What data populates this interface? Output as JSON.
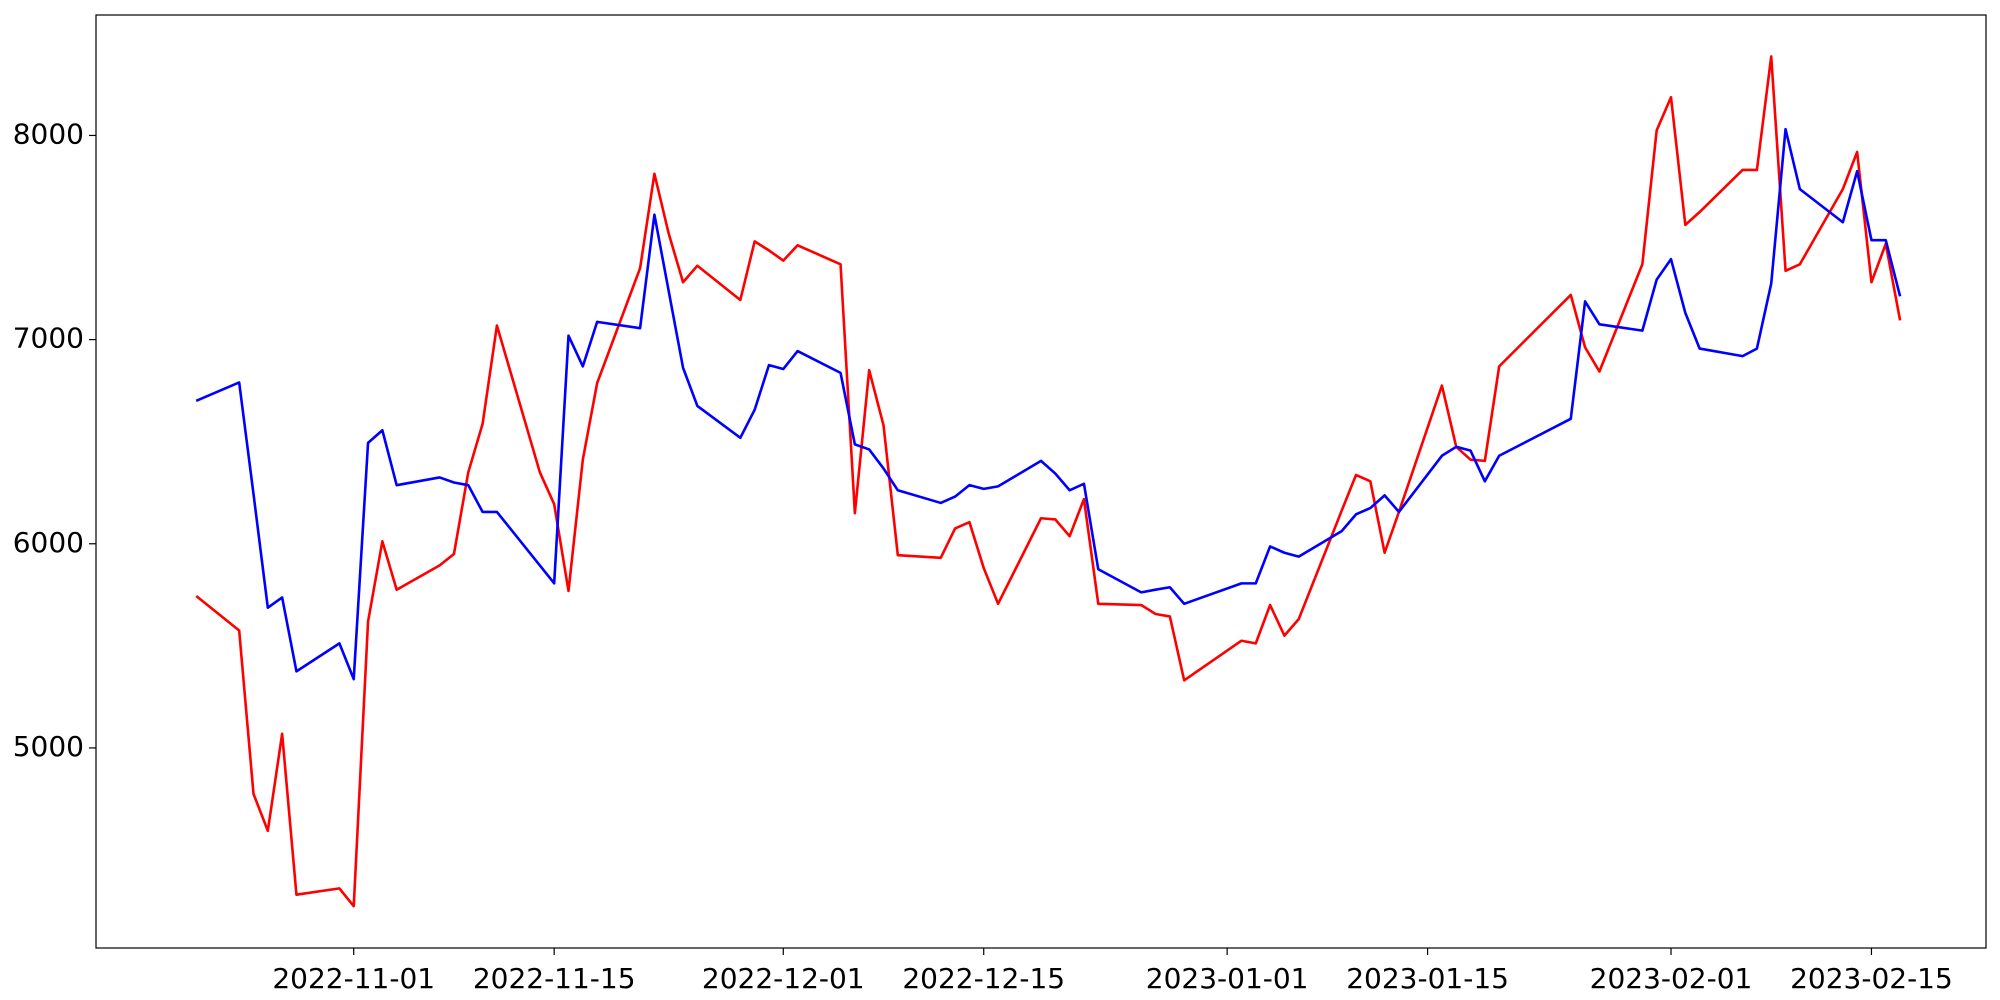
{
  "chart_data": {
    "type": "line",
    "x": [
      "2022-10-21",
      "2022-10-24",
      "2022-10-25",
      "2022-10-26",
      "2022-10-27",
      "2022-10-28",
      "2022-10-31",
      "2022-11-01",
      "2022-11-02",
      "2022-11-03",
      "2022-11-04",
      "2022-11-07",
      "2022-11-08",
      "2022-11-09",
      "2022-11-10",
      "2022-11-11",
      "2022-11-14",
      "2022-11-15",
      "2022-11-16",
      "2022-11-17",
      "2022-11-18",
      "2022-11-21",
      "2022-11-22",
      "2022-11-23",
      "2022-11-24",
      "2022-11-25",
      "2022-11-28",
      "2022-11-29",
      "2022-11-30",
      "2022-12-01",
      "2022-12-02",
      "2022-12-05",
      "2022-12-06",
      "2022-12-07",
      "2022-12-08",
      "2022-12-09",
      "2022-12-12",
      "2022-12-13",
      "2022-12-14",
      "2022-12-15",
      "2022-12-16",
      "2022-12-19",
      "2022-12-20",
      "2022-12-21",
      "2022-12-22",
      "2022-12-23",
      "2022-12-26",
      "2022-12-27",
      "2022-12-28",
      "2022-12-29",
      "2023-01-02",
      "2023-01-03",
      "2023-01-04",
      "2023-01-05",
      "2023-01-06",
      "2023-01-09",
      "2023-01-10",
      "2023-01-11",
      "2023-01-12",
      "2023-01-13",
      "2023-01-16",
      "2023-01-17",
      "2023-01-18",
      "2023-01-19",
      "2023-01-20",
      "2023-01-25",
      "2023-01-26",
      "2023-01-27",
      "2023-01-30",
      "2023-01-31",
      "2023-02-01",
      "2023-02-02",
      "2023-02-03",
      "2023-02-06",
      "2023-02-07",
      "2023-02-08",
      "2023-02-09",
      "2023-02-10",
      "2023-02-13",
      "2023-02-14",
      "2023-02-15",
      "2023-02-16",
      "2023-02-17"
    ],
    "series": [
      {
        "color": "#ff0000",
        "values": [
          5744,
          5575,
          4775,
          4594,
          5069,
          4281,
          4312,
          4225,
          5619,
          6012,
          5775,
          5894,
          5950,
          6350,
          6587,
          7069,
          6350,
          6194,
          5769,
          6412,
          6787,
          7350,
          7812,
          7519,
          7281,
          7362,
          7194,
          7481,
          7437,
          7387,
          7462,
          7369,
          6150,
          6850,
          6581,
          5944,
          5931,
          6075,
          6106,
          5881,
          5706,
          6125,
          6119,
          6037,
          6219,
          5706,
          5700,
          5656,
          5644,
          5331,
          5525,
          5512,
          5700,
          5550,
          5631,
          6162,
          6337,
          6306,
          5956,
          6156,
          6775,
          6475,
          6412,
          6406,
          6869,
          7219,
          6962,
          6844,
          7369,
          8025,
          8187,
          7562,
          7625,
          7831,
          7831,
          8387,
          7337,
          7369,
          7737,
          7919,
          7281,
          7469,
          7094
        ]
      },
      {
        "color": "#0000ff",
        "values": [
          6700,
          6790,
          6244,
          5687,
          5737,
          5375,
          5512,
          5337,
          6494,
          6556,
          6287,
          6325,
          6300,
          6287,
          6156,
          6156,
          5894,
          5806,
          7019,
          6869,
          7087,
          7056,
          7612,
          7237,
          6862,
          6675,
          6519,
          6656,
          6875,
          6856,
          6944,
          6837,
          6487,
          6462,
          6369,
          6262,
          6200,
          6231,
          6287,
          6269,
          6281,
          6406,
          6344,
          6262,
          6294,
          5875,
          5762,
          5775,
          5787,
          5706,
          5806,
          5806,
          5987,
          5956,
          5937,
          6062,
          6144,
          6175,
          6237,
          6156,
          6431,
          6475,
          6456,
          6306,
          6431,
          6612,
          7187,
          7075,
          7044,
          7294,
          7394,
          7131,
          6956,
          6919,
          6956,
          7275,
          8031,
          7737,
          7575,
          7825,
          7487,
          7487,
          7212
        ]
      }
    ],
    "xlim": [
      "2022-10-14",
      "2023-02-23"
    ],
    "xticks": [
      "2022-11-01",
      "2022-11-15",
      "2022-12-01",
      "2022-12-15",
      "2023-01-01",
      "2023-01-15",
      "2023-02-01",
      "2023-02-15"
    ],
    "ylim": [
      4020,
      8590
    ],
    "yticks": [
      5000,
      6000,
      7000,
      8000
    ],
    "grid": false
  }
}
